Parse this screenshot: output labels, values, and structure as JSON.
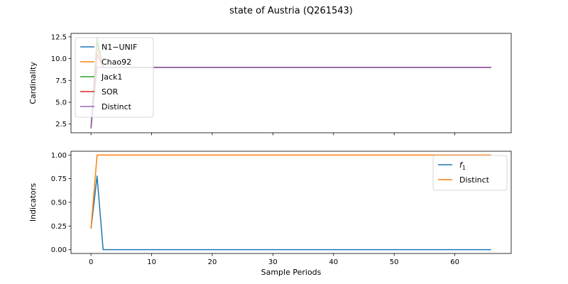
{
  "figure": {
    "title": "state of Austria (Q261543)"
  },
  "chart_data": [
    {
      "type": "line",
      "panel": "top",
      "title": "",
      "xlabel": "",
      "ylabel": "Cardinality",
      "xlim": [
        -3.3,
        69.3
      ],
      "ylim": [
        1.5,
        12.9
      ],
      "xticks": [
        0,
        10,
        20,
        30,
        40,
        50,
        60
      ],
      "yticks": [
        2.5,
        5.0,
        7.5,
        10.0,
        12.5
      ],
      "ytick_labels": [
        "2.5",
        "5.0",
        "7.5",
        "10.0",
        "12.5"
      ],
      "show_xtick_labels": false,
      "grid": false,
      "legend": "upper-left",
      "x_end": 66,
      "series": [
        {
          "name": "N1−UNIF",
          "color": "#1f77b4",
          "points": [
            [
              0,
              2
            ],
            [
              1,
              12.0
            ],
            [
              2,
              9
            ],
            [
              66,
              9
            ]
          ]
        },
        {
          "name": "Chao92",
          "color": "#ff7f0e",
          "points": [
            [
              0,
              2
            ],
            [
              1,
              11.3
            ],
            [
              2,
              9
            ],
            [
              66,
              9
            ]
          ]
        },
        {
          "name": "Jack1",
          "color": "#2ca02c",
          "points": [
            [
              0,
              2
            ],
            [
              1,
              12.4
            ],
            [
              2,
              9
            ],
            [
              66,
              9
            ]
          ]
        },
        {
          "name": "SOR",
          "color": "#d62728",
          "points": [
            [
              0,
              2
            ],
            [
              1,
              10.5
            ],
            [
              2,
              9
            ],
            [
              66,
              9
            ]
          ]
        },
        {
          "name": "Distinct",
          "color": "#9467bd",
          "points": [
            [
              0,
              2
            ],
            [
              1,
              9
            ],
            [
              66,
              9
            ]
          ]
        }
      ]
    },
    {
      "type": "line",
      "panel": "bottom",
      "title": "",
      "xlabel": "Sample Periods",
      "ylabel": "Indicators",
      "xlim": [
        -3.3,
        69.3
      ],
      "ylim": [
        -0.04,
        1.04
      ],
      "xticks": [
        0,
        10,
        20,
        30,
        40,
        50,
        60
      ],
      "yticks": [
        0.0,
        0.25,
        0.5,
        0.75,
        1.0
      ],
      "ytick_labels": [
        "0.00",
        "0.25",
        "0.50",
        "0.75",
        "1.00"
      ],
      "show_xtick_labels": true,
      "grid": false,
      "legend": "upper-right",
      "series": [
        {
          "name": "f",
          "name_subscript": "1",
          "color": "#1f77b4",
          "points": [
            [
              0,
              0.222
            ],
            [
              1,
              0.778
            ],
            [
              2,
              0
            ],
            [
              66,
              0
            ]
          ]
        },
        {
          "name": "Distinct",
          "color": "#ff7f0e",
          "points": [
            [
              0,
              0.222
            ],
            [
              1,
              1
            ],
            [
              66,
              1
            ]
          ]
        }
      ]
    }
  ]
}
